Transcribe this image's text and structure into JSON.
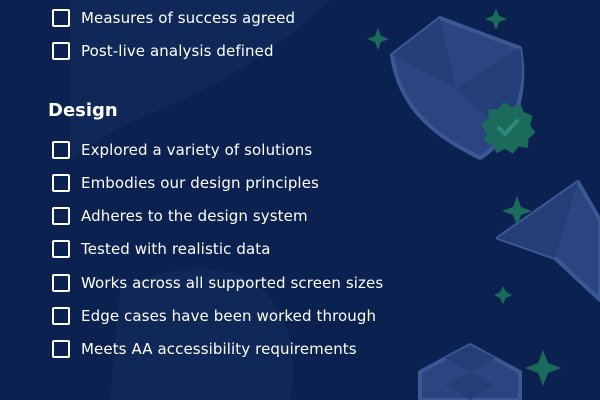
{
  "colors": {
    "background": "#0b2150",
    "text": "#ffffff",
    "illustration": "#2a4580",
    "accent": "#1b6b5d"
  },
  "top_items": [
    {
      "label": "Measures of success agreed",
      "checked": false
    },
    {
      "label": "Post-live analysis defined",
      "checked": false
    }
  ],
  "design": {
    "heading": "Design",
    "items": [
      {
        "label": "Explored a variety of solutions",
        "checked": false
      },
      {
        "label": "Embodies our design principles",
        "checked": false
      },
      {
        "label": "Adheres to the design system",
        "checked": false
      },
      {
        "label": "Tested with realistic data",
        "checked": false
      },
      {
        "label": "Works across all supported screen sizes",
        "checked": false
      },
      {
        "label": "Edge cases have been worked through",
        "checked": false
      },
      {
        "label": "Meets AA accessibility requirements",
        "checked": false
      }
    ]
  },
  "decorations": {
    "icons": [
      "shield-icon",
      "badge-check-icon",
      "paper-plane-icon",
      "sparkle-icon",
      "checker-cube-icon"
    ]
  }
}
